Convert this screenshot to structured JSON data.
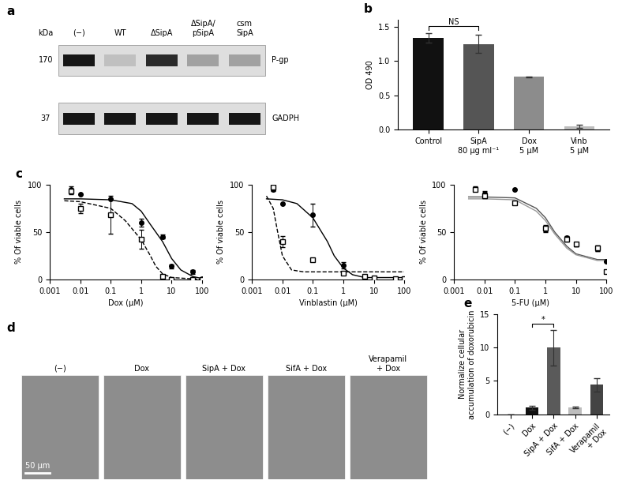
{
  "blot": {
    "panel_label": "a",
    "unit_label": "kDa",
    "lanes": [
      "(−)",
      "WT",
      "ΔSipA",
      "ΔSipA/\npSipA",
      "csm\nSipA"
    ],
    "bands": [
      {
        "name": "P-gp",
        "marker": 170,
        "intensity": [
          1.0,
          0.15,
          0.9,
          0.3,
          0.3
        ]
      },
      {
        "name": "GADPH",
        "marker": 37,
        "intensity": [
          1.0,
          1.0,
          1.0,
          1.0,
          1.0
        ]
      }
    ]
  },
  "chart_data": [
    {
      "panel_label": "b",
      "type": "bar",
      "categories": [
        "Control",
        "SipA\n80 μg ml⁻¹",
        "Dox\n5 μM",
        "Vinb\n5 μM"
      ],
      "values": [
        1.34,
        1.25,
        0.77,
        0.05
      ],
      "errors": [
        0.07,
        0.13,
        0.01,
        0.02
      ],
      "colors": [
        "#111111",
        "#555555",
        "#8c8c8c",
        "#bdbdbd"
      ],
      "y_label": "OD 490",
      "ylim": [
        0,
        1.6
      ],
      "yticks": [
        {
          "value": 0,
          "label": "0.0"
        },
        0.5,
        {
          "value": 1.0,
          "label": "1.0"
        },
        1.5
      ],
      "annotations": [
        {
          "text": "NS",
          "categories": [
            "Control",
            "SipA\n80 μg ml⁻¹"
          ]
        }
      ]
    },
    {
      "panel_label": "c",
      "type": "line",
      "x_label": "Dox (μM)",
      "y_label": "% Of viable cells",
      "log": "x",
      "xlim": [
        0.001,
        100
      ],
      "xticks": [
        0.001,
        0.01,
        0.1,
        1,
        10,
        100
      ],
      "ylim": [
        0,
        100
      ],
      "yticks": [
        0,
        50,
        100
      ],
      "series": [
        {
          "type": "scatter",
          "marker": "filled_circle",
          "color": "#000000",
          "x": [
            0.005,
            0.01,
            0.1,
            1,
            5,
            10,
            50,
            100
          ],
          "values": [
            95,
            90,
            85,
            60,
            45,
            14,
            8,
            1
          ],
          "errors": [
            3,
            0,
            0,
            4,
            2,
            2,
            2,
            0
          ]
        },
        {
          "type": "scatter",
          "marker": "open_square",
          "color": "#000000",
          "x": [
            0.005,
            0.01,
            0.1,
            1,
            5,
            10,
            50,
            100
          ],
          "values": [
            93,
            75,
            68,
            42,
            3,
            0,
            0,
            0
          ],
          "errors": [
            3,
            5,
            20,
            10,
            1,
            0,
            0,
            0
          ]
        },
        {
          "type": "line",
          "line_style": "solid",
          "color": "#000000",
          "x": [
            0.003,
            0.01,
            0.1,
            0.5,
            1,
            2,
            5,
            10,
            20,
            50,
            100
          ],
          "values": [
            85,
            85,
            84,
            80,
            72,
            58,
            40,
            22,
            10,
            3,
            1
          ]
        },
        {
          "type": "line",
          "line_style": "dashed",
          "color": "#000000",
          "x": [
            0.003,
            0.01,
            0.1,
            0.3,
            1,
            2,
            3,
            5,
            10,
            100
          ],
          "values": [
            83,
            82,
            75,
            62,
            42,
            25,
            14,
            6,
            2,
            0
          ]
        }
      ]
    },
    {
      "type": "line",
      "x_label": "Vinblastin (μM)",
      "y_label": "% Of viable cells",
      "log": "x",
      "xlim": [
        0.001,
        100
      ],
      "xticks": [
        0.001,
        0.01,
        0.1,
        1,
        10,
        100
      ],
      "ylim": [
        0,
        100
      ],
      "yticks": [
        0,
        50,
        100
      ],
      "series": [
        {
          "type": "scatter",
          "marker": "filled_circle",
          "color": "#000000",
          "x": [
            0.005,
            0.01,
            0.1,
            1,
            5,
            10,
            50,
            100
          ],
          "values": [
            95,
            80,
            68,
            15,
            3,
            2,
            1,
            1
          ],
          "errors": [
            2,
            0,
            12,
            3,
            1,
            0,
            0,
            0
          ]
        },
        {
          "type": "scatter",
          "marker": "open_square",
          "color": "#000000",
          "x": [
            0.005,
            0.01,
            0.1,
            1,
            5,
            10,
            50,
            100
          ],
          "values": [
            97,
            40,
            21,
            7,
            3,
            2,
            1,
            1
          ],
          "errors": [
            2,
            6,
            0,
            0,
            0,
            0,
            0,
            0
          ]
        },
        {
          "type": "line",
          "line_style": "solid",
          "color": "#000000",
          "x": [
            0.003,
            0.01,
            0.03,
            0.1,
            0.3,
            0.5,
            1,
            2,
            5,
            100
          ],
          "values": [
            85,
            84,
            80,
            65,
            40,
            25,
            12,
            5,
            2,
            2
          ]
        },
        {
          "type": "line",
          "line_style": "dashed",
          "color": "#000000",
          "x": [
            0.003,
            0.005,
            0.007,
            0.01,
            0.02,
            0.05,
            0.1,
            100
          ],
          "values": [
            88,
            75,
            50,
            25,
            10,
            8,
            8,
            8
          ]
        }
      ]
    },
    {
      "type": "line",
      "x_label": "5-FU (μM)",
      "y_label": "% Of viable cells",
      "log": "x",
      "xlim": [
        0.001,
        100
      ],
      "xticks": [
        0.001,
        0.01,
        0.1,
        1,
        10,
        100
      ],
      "ylim": [
        0,
        100
      ],
      "yticks": [
        0,
        50,
        100
      ],
      "series": [
        {
          "type": "scatter",
          "marker": "filled_circle",
          "color": "#000000",
          "x": [
            0.005,
            0.01,
            0.1,
            1,
            5,
            10,
            50,
            100
          ],
          "values": [
            96,
            91,
            95,
            53,
            44,
            37,
            33,
            19
          ],
          "errors": [
            2,
            2,
            0,
            3,
            2,
            2,
            3,
            0
          ]
        },
        {
          "type": "scatter",
          "marker": "open_square",
          "color": "#000000",
          "x": [
            0.005,
            0.01,
            0.1,
            1,
            5,
            10,
            50,
            100
          ],
          "values": [
            95,
            88,
            81,
            54,
            42,
            37,
            33,
            8
          ],
          "errors": [
            2,
            2,
            0,
            3,
            2,
            2,
            3,
            0
          ]
        },
        {
          "type": "line",
          "line_style": "solid",
          "color": "#555555",
          "x": [
            0.003,
            0.01,
            0.1,
            0.5,
            1,
            2,
            5,
            10,
            50,
            100
          ],
          "values": [
            87,
            87,
            86,
            75,
            65,
            50,
            35,
            27,
            21,
            21
          ]
        },
        {
          "type": "line",
          "line_style": "solid",
          "color": "#999999",
          "x": [
            0.003,
            0.01,
            0.1,
            0.5,
            1,
            2,
            5,
            10,
            50,
            100
          ],
          "values": [
            85,
            85,
            84,
            72,
            62,
            48,
            33,
            26,
            20,
            20
          ]
        }
      ]
    },
    {
      "panel_label": "e",
      "type": "bar",
      "categories": [
        "(−)",
        "Dox",
        "SipA + Dox",
        "SifA + Dox",
        "Verapamil\n+ Dox"
      ],
      "values": [
        0,
        1.0,
        10.0,
        1.0,
        4.4
      ],
      "errors": [
        0,
        0.3,
        2.7,
        0.1,
        1.0
      ],
      "colors": [
        "#111111",
        "#111111",
        "#5a5a5a",
        "#bdbdbd",
        "#444444"
      ],
      "y_label": "Normalize cellular\naccumulation of doxorubicin",
      "ylim": [
        0,
        15
      ],
      "yticks": [
        0,
        5,
        10,
        15
      ],
      "annotations": [
        {
          "text": "*",
          "categories": [
            "Dox",
            "SipA + Dox"
          ]
        }
      ]
    }
  ],
  "micrographs": {
    "panel_label": "d",
    "images": [
      "(−)",
      "Dox",
      "SipA + Dox",
      "SifA + Dox",
      "Verapamil\n+ Dox"
    ],
    "scale_bar": "50 μm"
  }
}
